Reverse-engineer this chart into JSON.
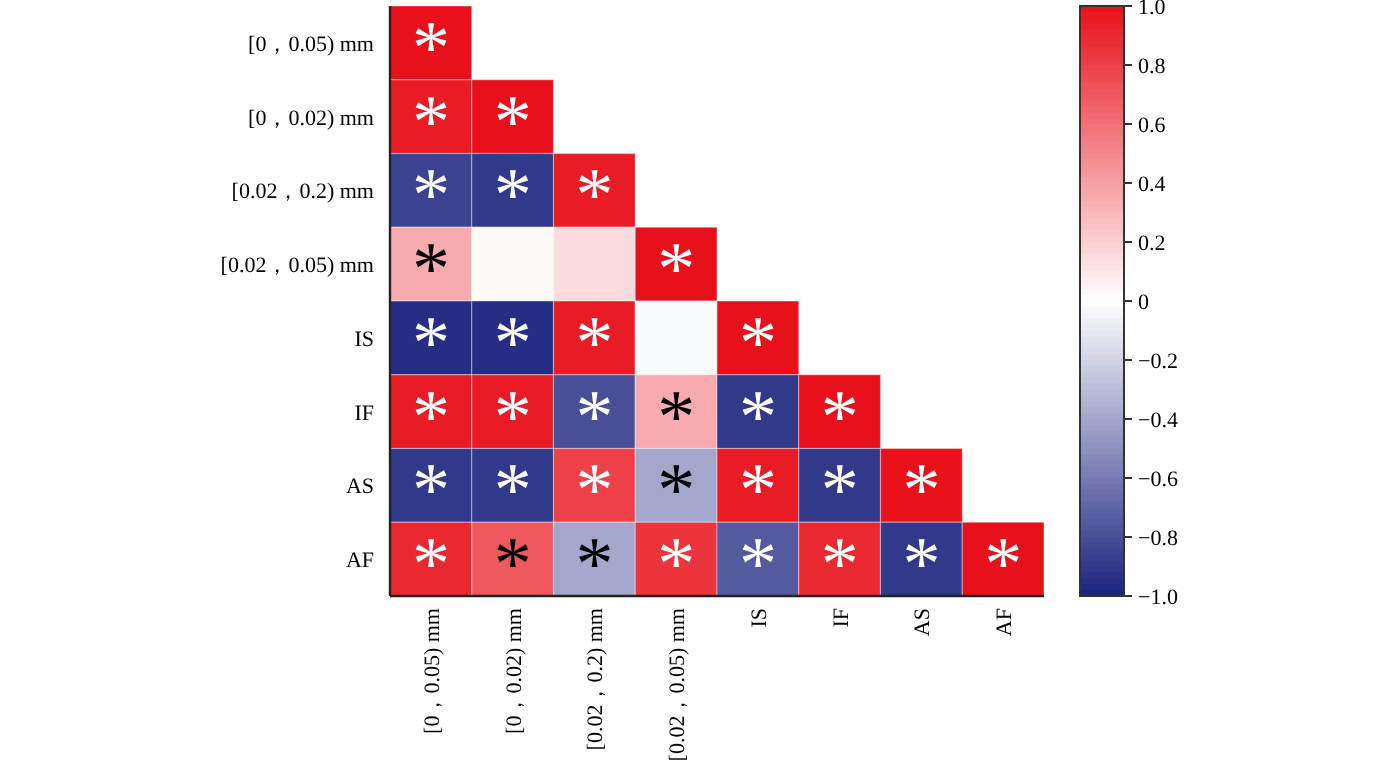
{
  "chart_data": {
    "type": "heatmap",
    "categories": [
      "[0，0.05) mm",
      "[0，0.02) mm",
      "[0.02，0.2) mm",
      "[0.02，0.05) mm",
      "IS",
      "IF",
      "AS",
      "AF"
    ],
    "y_categories": [
      "[0，0.05) mm",
      "[0，0.02) mm",
      "[0.02，0.2) mm",
      "[0.02，0.05) mm",
      "IS",
      "IF",
      "AS",
      "AF"
    ],
    "cells": [
      [
        1,
        null,
        null,
        null,
        null,
        null,
        null,
        null
      ],
      [
        0.95,
        1,
        null,
        null,
        null,
        null,
        null,
        null
      ],
      [
        -0.85,
        -0.9,
        0.95,
        null,
        null,
        null,
        null,
        null
      ],
      [
        0.35,
        0.02,
        0.15,
        1,
        null,
        null,
        null,
        null
      ],
      [
        -0.95,
        -0.95,
        0.95,
        -0.02,
        1,
        null,
        null,
        null
      ],
      [
        0.95,
        0.95,
        -0.8,
        0.35,
        -0.9,
        1,
        null,
        null
      ],
      [
        -0.9,
        -0.9,
        0.8,
        -0.4,
        0.95,
        -0.9,
        1,
        null
      ],
      [
        0.9,
        0.7,
        -0.4,
        0.85,
        -0.75,
        0.9,
        -0.9,
        1
      ]
    ],
    "cell_labels": [
      [
        "*",
        null,
        null,
        null,
        null,
        null,
        null,
        null
      ],
      [
        "*",
        "*",
        null,
        null,
        null,
        null,
        null,
        null
      ],
      [
        "*",
        "*",
        "*",
        null,
        null,
        null,
        null,
        null
      ],
      [
        "*",
        null,
        null,
        "*",
        null,
        null,
        null,
        null
      ],
      [
        "*",
        "*",
        "*",
        null,
        "*",
        null,
        null,
        null
      ],
      [
        "*",
        "*",
        "*",
        "*",
        "*",
        "*",
        null,
        null
      ],
      [
        "*",
        "*",
        "*",
        "*",
        "*",
        "*",
        "*",
        null
      ],
      [
        "*",
        "*",
        "*",
        "*",
        "*",
        "*",
        "*",
        "*"
      ]
    ],
    "clim": [
      -1,
      1
    ],
    "cticks": [
      {
        "value": 1,
        "label": "1.0"
      },
      {
        "value": 0.8,
        "label": "0.8"
      },
      {
        "value": 0.6,
        "label": "0.6"
      },
      {
        "value": 0.4,
        "label": "0.4"
      },
      {
        "value": 0.2,
        "label": "0.2"
      },
      {
        "value": 0,
        "label": "0"
      },
      {
        "value": -0.2,
        "label": "−0.2"
      },
      {
        "value": -0.4,
        "label": "−0.4"
      },
      {
        "value": -0.6,
        "label": "−0.6"
      },
      {
        "value": -0.8,
        "label": "−0.8"
      },
      {
        "value": -1,
        "label": "−1.0"
      }
    ]
  }
}
